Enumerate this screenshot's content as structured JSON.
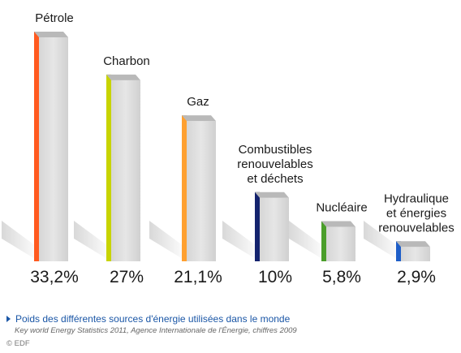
{
  "chart_data": {
    "type": "bar",
    "title": "",
    "xlabel": "",
    "ylabel": "",
    "categories": [
      "Pétrole",
      "Charbon",
      "Gaz",
      "Combustibles renouvelables et déchets",
      "Nucléaire",
      "Hydraulique et énergies renouvelables"
    ],
    "label_lines": [
      [
        "Pétrole"
      ],
      [
        "Charbon"
      ],
      [
        "Gaz"
      ],
      [
        "Combustibles",
        "renouvelables",
        "et déchets"
      ],
      [
        "Nucléaire"
      ],
      [
        "Hydraulique",
        "et énergies",
        "renouvelables"
      ]
    ],
    "values": [
      33.2,
      27,
      21.1,
      10,
      5.8,
      2.9
    ],
    "value_labels": [
      "33,2%",
      "27%",
      "21,1%",
      "10%",
      "5,8%",
      "2,9%"
    ],
    "accent_colors": [
      "#ff5a1f",
      "#c8d400",
      "#ffa030",
      "#14236e",
      "#4a9e2a",
      "#1e5ec8"
    ],
    "ylim": [
      0,
      33.2
    ],
    "grid": false,
    "legend": "none"
  },
  "caption": "Poids des différentes sources d'énergie utilisées dans le monde",
  "source": "Key world Energy Statistics 2011, Agence Internationale de l'Énergie, chiffres 2009",
  "credit": "© EDF"
}
